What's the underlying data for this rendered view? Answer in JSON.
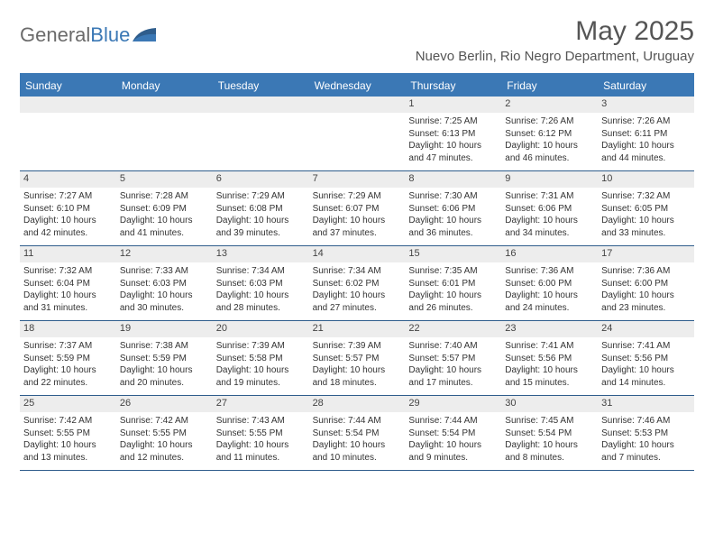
{
  "brand": {
    "part1": "General",
    "part2": "Blue"
  },
  "title": "May 2025",
  "location": "Nuevo Berlin, Rio Negro Department, Uruguay",
  "colors": {
    "accent": "#3b78b5",
    "header_bg": "#ededed",
    "border": "#2f5d8c",
    "text": "#333333",
    "muted": "#6b6b6b"
  },
  "day_labels": [
    "Sunday",
    "Monday",
    "Tuesday",
    "Wednesday",
    "Thursday",
    "Friday",
    "Saturday"
  ],
  "weeks": [
    [
      {
        "empty": true
      },
      {
        "empty": true
      },
      {
        "empty": true
      },
      {
        "empty": true
      },
      {
        "day": "1",
        "sunrise": "Sunrise: 7:25 AM",
        "sunset": "Sunset: 6:13 PM",
        "daylight": "Daylight: 10 hours and 47 minutes."
      },
      {
        "day": "2",
        "sunrise": "Sunrise: 7:26 AM",
        "sunset": "Sunset: 6:12 PM",
        "daylight": "Daylight: 10 hours and 46 minutes."
      },
      {
        "day": "3",
        "sunrise": "Sunrise: 7:26 AM",
        "sunset": "Sunset: 6:11 PM",
        "daylight": "Daylight: 10 hours and 44 minutes."
      }
    ],
    [
      {
        "day": "4",
        "sunrise": "Sunrise: 7:27 AM",
        "sunset": "Sunset: 6:10 PM",
        "daylight": "Daylight: 10 hours and 42 minutes."
      },
      {
        "day": "5",
        "sunrise": "Sunrise: 7:28 AM",
        "sunset": "Sunset: 6:09 PM",
        "daylight": "Daylight: 10 hours and 41 minutes."
      },
      {
        "day": "6",
        "sunrise": "Sunrise: 7:29 AM",
        "sunset": "Sunset: 6:08 PM",
        "daylight": "Daylight: 10 hours and 39 minutes."
      },
      {
        "day": "7",
        "sunrise": "Sunrise: 7:29 AM",
        "sunset": "Sunset: 6:07 PM",
        "daylight": "Daylight: 10 hours and 37 minutes."
      },
      {
        "day": "8",
        "sunrise": "Sunrise: 7:30 AM",
        "sunset": "Sunset: 6:06 PM",
        "daylight": "Daylight: 10 hours and 36 minutes."
      },
      {
        "day": "9",
        "sunrise": "Sunrise: 7:31 AM",
        "sunset": "Sunset: 6:06 PM",
        "daylight": "Daylight: 10 hours and 34 minutes."
      },
      {
        "day": "10",
        "sunrise": "Sunrise: 7:32 AM",
        "sunset": "Sunset: 6:05 PM",
        "daylight": "Daylight: 10 hours and 33 minutes."
      }
    ],
    [
      {
        "day": "11",
        "sunrise": "Sunrise: 7:32 AM",
        "sunset": "Sunset: 6:04 PM",
        "daylight": "Daylight: 10 hours and 31 minutes."
      },
      {
        "day": "12",
        "sunrise": "Sunrise: 7:33 AM",
        "sunset": "Sunset: 6:03 PM",
        "daylight": "Daylight: 10 hours and 30 minutes."
      },
      {
        "day": "13",
        "sunrise": "Sunrise: 7:34 AM",
        "sunset": "Sunset: 6:03 PM",
        "daylight": "Daylight: 10 hours and 28 minutes."
      },
      {
        "day": "14",
        "sunrise": "Sunrise: 7:34 AM",
        "sunset": "Sunset: 6:02 PM",
        "daylight": "Daylight: 10 hours and 27 minutes."
      },
      {
        "day": "15",
        "sunrise": "Sunrise: 7:35 AM",
        "sunset": "Sunset: 6:01 PM",
        "daylight": "Daylight: 10 hours and 26 minutes."
      },
      {
        "day": "16",
        "sunrise": "Sunrise: 7:36 AM",
        "sunset": "Sunset: 6:00 PM",
        "daylight": "Daylight: 10 hours and 24 minutes."
      },
      {
        "day": "17",
        "sunrise": "Sunrise: 7:36 AM",
        "sunset": "Sunset: 6:00 PM",
        "daylight": "Daylight: 10 hours and 23 minutes."
      }
    ],
    [
      {
        "day": "18",
        "sunrise": "Sunrise: 7:37 AM",
        "sunset": "Sunset: 5:59 PM",
        "daylight": "Daylight: 10 hours and 22 minutes."
      },
      {
        "day": "19",
        "sunrise": "Sunrise: 7:38 AM",
        "sunset": "Sunset: 5:59 PM",
        "daylight": "Daylight: 10 hours and 20 minutes."
      },
      {
        "day": "20",
        "sunrise": "Sunrise: 7:39 AM",
        "sunset": "Sunset: 5:58 PM",
        "daylight": "Daylight: 10 hours and 19 minutes."
      },
      {
        "day": "21",
        "sunrise": "Sunrise: 7:39 AM",
        "sunset": "Sunset: 5:57 PM",
        "daylight": "Daylight: 10 hours and 18 minutes."
      },
      {
        "day": "22",
        "sunrise": "Sunrise: 7:40 AM",
        "sunset": "Sunset: 5:57 PM",
        "daylight": "Daylight: 10 hours and 17 minutes."
      },
      {
        "day": "23",
        "sunrise": "Sunrise: 7:41 AM",
        "sunset": "Sunset: 5:56 PM",
        "daylight": "Daylight: 10 hours and 15 minutes."
      },
      {
        "day": "24",
        "sunrise": "Sunrise: 7:41 AM",
        "sunset": "Sunset: 5:56 PM",
        "daylight": "Daylight: 10 hours and 14 minutes."
      }
    ],
    [
      {
        "day": "25",
        "sunrise": "Sunrise: 7:42 AM",
        "sunset": "Sunset: 5:55 PM",
        "daylight": "Daylight: 10 hours and 13 minutes."
      },
      {
        "day": "26",
        "sunrise": "Sunrise: 7:42 AM",
        "sunset": "Sunset: 5:55 PM",
        "daylight": "Daylight: 10 hours and 12 minutes."
      },
      {
        "day": "27",
        "sunrise": "Sunrise: 7:43 AM",
        "sunset": "Sunset: 5:55 PM",
        "daylight": "Daylight: 10 hours and 11 minutes."
      },
      {
        "day": "28",
        "sunrise": "Sunrise: 7:44 AM",
        "sunset": "Sunset: 5:54 PM",
        "daylight": "Daylight: 10 hours and 10 minutes."
      },
      {
        "day": "29",
        "sunrise": "Sunrise: 7:44 AM",
        "sunset": "Sunset: 5:54 PM",
        "daylight": "Daylight: 10 hours and 9 minutes."
      },
      {
        "day": "30",
        "sunrise": "Sunrise: 7:45 AM",
        "sunset": "Sunset: 5:54 PM",
        "daylight": "Daylight: 10 hours and 8 minutes."
      },
      {
        "day": "31",
        "sunrise": "Sunrise: 7:46 AM",
        "sunset": "Sunset: 5:53 PM",
        "daylight": "Daylight: 10 hours and 7 minutes."
      }
    ]
  ]
}
